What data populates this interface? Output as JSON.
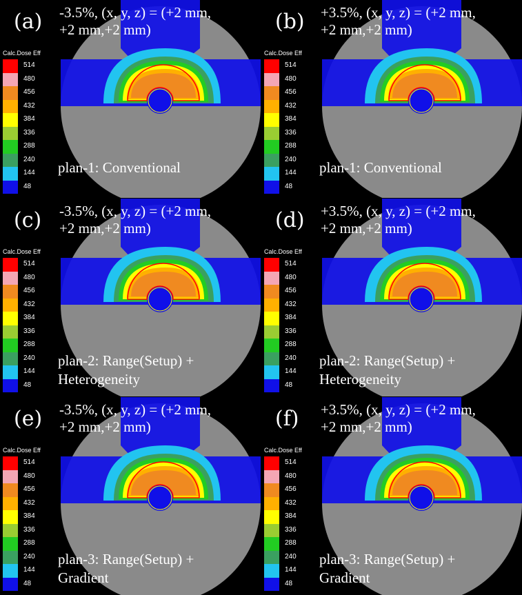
{
  "legend": {
    "title": "Calc.Dose Eff",
    "levels": [
      {
        "value": "514",
        "color": "#ff0000"
      },
      {
        "value": "480",
        "color": "#f4a6b4"
      },
      {
        "value": "456",
        "color": "#f08a20"
      },
      {
        "value": "432",
        "color": "#ffb000"
      },
      {
        "value": "384",
        "color": "#ffff00"
      },
      {
        "value": "336",
        "color": "#9acd32"
      },
      {
        "value": "288",
        "color": "#22cc22"
      },
      {
        "value": "240",
        "color": "#3aa060"
      },
      {
        "value": "144",
        "color": "#22c4f0"
      },
      {
        "value": "48",
        "color": "#1010e8"
      }
    ]
  },
  "panels": [
    {
      "id": "a",
      "label": "(a)",
      "header_line1": "-3.5%, (x, y, z) = (+2 mm,",
      "header_line2": "+2 mm,+2 mm)",
      "plan_line1": "plan-1: Conventional",
      "plan_line2": ""
    },
    {
      "id": "b",
      "label": "(b)",
      "header_line1": "+3.5%, (x, y, z) = (+2 mm,",
      "header_line2": "+2 mm,+2 mm)",
      "plan_line1": "plan-1: Conventional",
      "plan_line2": ""
    },
    {
      "id": "c",
      "label": "(c)",
      "header_line1": "-3.5%, (x, y, z) = (+2 mm,",
      "header_line2": "+2 mm,+2 mm)",
      "plan_line1": "plan-2: Range(Setup) +",
      "plan_line2": "Heterogeneity"
    },
    {
      "id": "d",
      "label": "(d)",
      "header_line1": "+3.5%, (x, y, z) = (+2 mm,",
      "header_line2": "+2 mm,+2 mm)",
      "plan_line1": "plan-2: Range(Setup) +",
      "plan_line2": "Heterogeneity"
    },
    {
      "id": "e",
      "label": "(e)",
      "header_line1": "-3.5%, (x, y, z) = (+2 mm,",
      "header_line2": "+2 mm,+2 mm)",
      "plan_line1": "plan-3: Range(Setup) +",
      "plan_line2": "Gradient"
    },
    {
      "id": "f",
      "label": "(f)",
      "header_line1": "+3.5%, (x, y, z) = (+2 mm,",
      "header_line2": "+2 mm,+2 mm)",
      "plan_line1": "plan-3: Range(Setup) +",
      "plan_line2": "Gradient"
    }
  ]
}
